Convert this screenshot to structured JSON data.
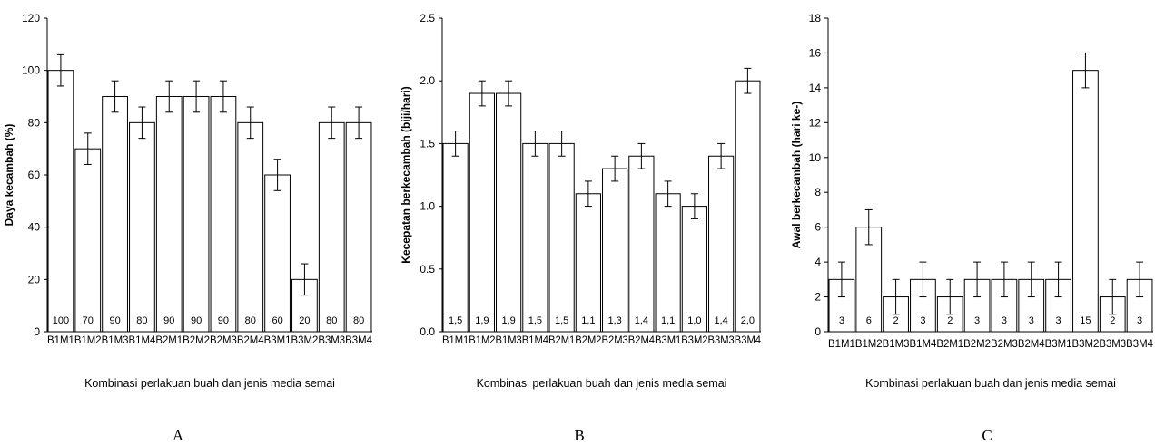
{
  "chart_data": [
    {
      "type": "bar",
      "panel_label": "A",
      "ylabel": "Daya kecambah (%)",
      "xlabel": "Kombinasi perlakuan buah dan jenis media semai",
      "ylim": [
        0,
        120
      ],
      "yticks": [
        0,
        20,
        40,
        60,
        80,
        100,
        120
      ],
      "ytick_labels": [
        "0",
        "20",
        "40",
        "60",
        "80",
        "100",
        "120"
      ],
      "categories": [
        "B1M1",
        "B1M2",
        "B1M3",
        "B1M4",
        "B2M1",
        "B2M2",
        "B2M3",
        "B2M4",
        "B3M1",
        "B3M2",
        "B3M3",
        "B3M4"
      ],
      "values": [
        100,
        70,
        90,
        80,
        90,
        90,
        90,
        80,
        60,
        20,
        80,
        80
      ],
      "value_labels": [
        "100",
        "70",
        "90",
        "80",
        "90",
        "90",
        "90",
        "80",
        "60",
        "20",
        "80",
        "80"
      ],
      "errors": [
        6,
        6,
        6,
        6,
        6,
        6,
        6,
        6,
        6,
        6,
        6,
        6
      ],
      "grid": false
    },
    {
      "type": "bar",
      "panel_label": "B",
      "ylabel": "Kecepatan berkecambah (biji/hari)",
      "xlabel": "Kombinasi perlakuan buah dan jenis media semai",
      "ylim": [
        0,
        2.5
      ],
      "yticks": [
        0,
        0.5,
        1.0,
        1.5,
        2.0,
        2.5
      ],
      "ytick_labels": [
        "0.0",
        "0.5",
        "1.0",
        "1.5",
        "2.0",
        "2.5"
      ],
      "categories": [
        "B1M1",
        "B1M2",
        "B1M3",
        "B1M4",
        "B2M1",
        "B2M2",
        "B2M3",
        "B2M4",
        "B3M1",
        "B3M2",
        "B3M3",
        "B3M4"
      ],
      "values": [
        1.5,
        1.9,
        1.9,
        1.5,
        1.5,
        1.1,
        1.3,
        1.4,
        1.1,
        1.0,
        1.4,
        2.0
      ],
      "value_labels": [
        "1,5",
        "1,9",
        "1,9",
        "1,5",
        "1,5",
        "1,1",
        "1,3",
        "1,4",
        "1,1",
        "1,0",
        "1,4",
        "2,0"
      ],
      "errors": [
        0.1,
        0.1,
        0.1,
        0.1,
        0.1,
        0.1,
        0.1,
        0.1,
        0.1,
        0.1,
        0.1,
        0.1
      ],
      "grid": false
    },
    {
      "type": "bar",
      "panel_label": "C",
      "ylabel": "Awal berkecambah (hari ke-)",
      "xlabel": "Kombinasi perlakuan buah dan jenis media semai",
      "ylim": [
        0,
        18
      ],
      "yticks": [
        0,
        2,
        4,
        6,
        8,
        10,
        12,
        14,
        16,
        18
      ],
      "ytick_labels": [
        "0",
        "2",
        "4",
        "6",
        "8",
        "10",
        "12",
        "14",
        "16",
        "18"
      ],
      "categories": [
        "B1M1",
        "B1M2",
        "B1M3",
        "B1M4",
        "B2M1",
        "B2M2",
        "B2M3",
        "B2M4",
        "B3M1",
        "B3M2",
        "B3M3",
        "B3M4"
      ],
      "values": [
        3,
        6,
        2,
        3,
        2,
        3,
        3,
        3,
        3,
        15,
        2,
        3
      ],
      "value_labels": [
        "3",
        "6",
        "2",
        "3",
        "2",
        "3",
        "3",
        "3",
        "3",
        "15",
        "2",
        "3"
      ],
      "errors": [
        1,
        1,
        1,
        1,
        1,
        1,
        1,
        1,
        1,
        1,
        1,
        1
      ],
      "grid": false
    }
  ]
}
